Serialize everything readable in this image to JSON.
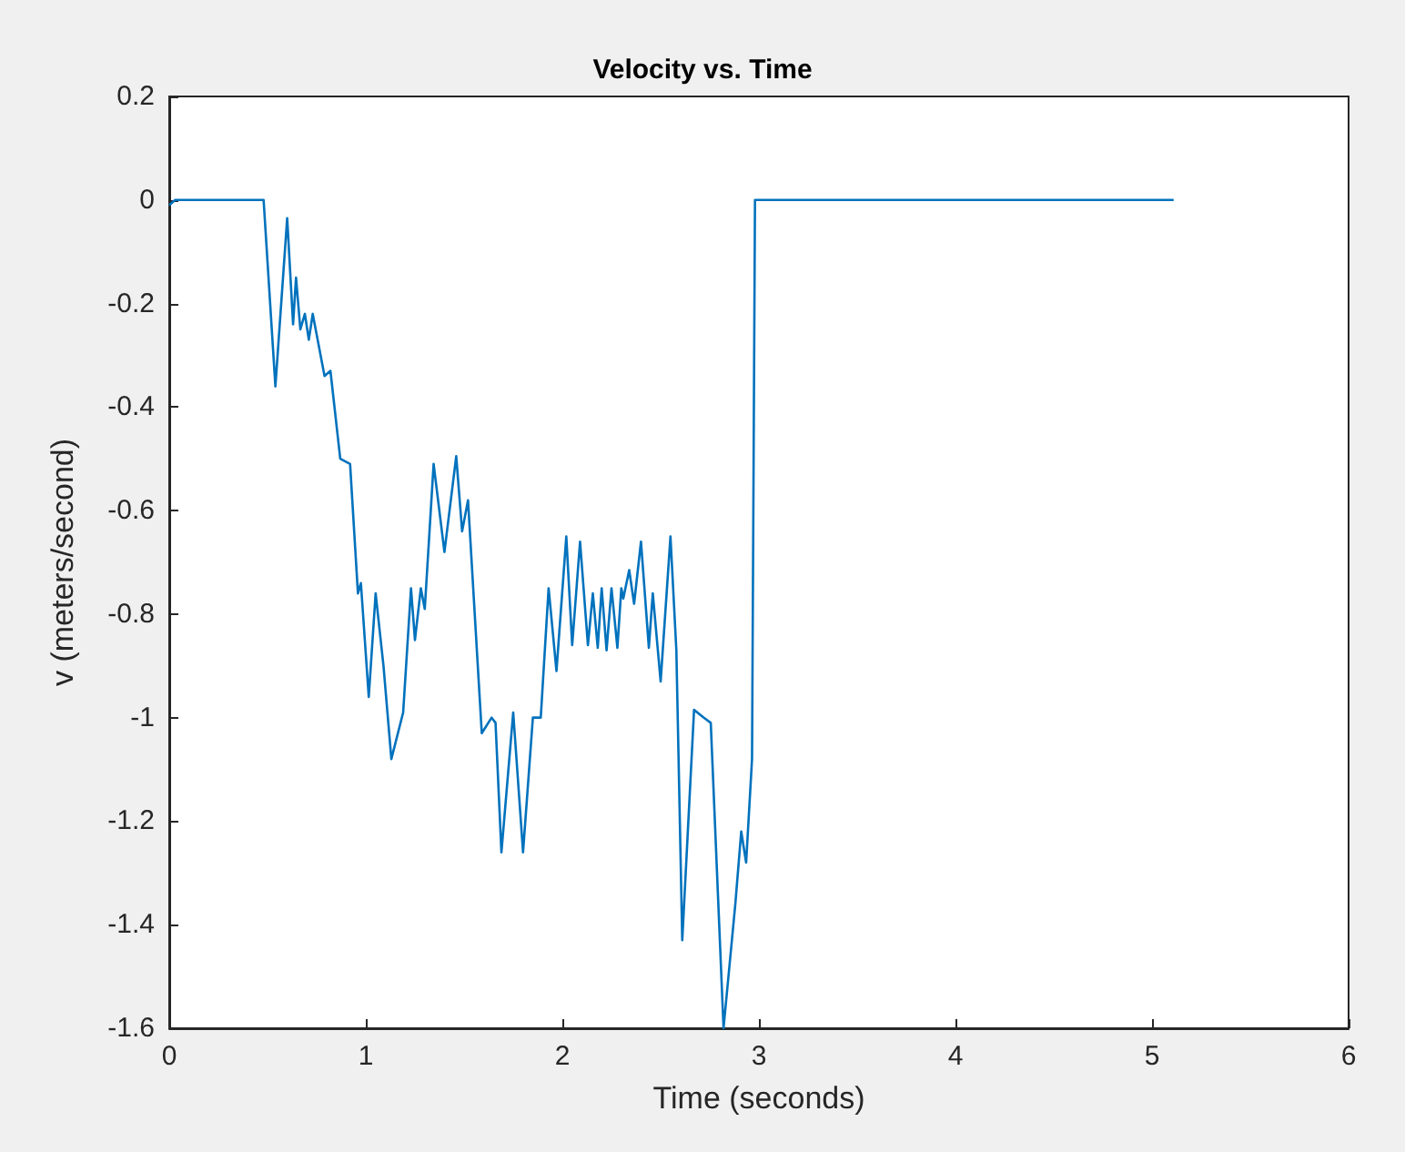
{
  "chart_data": {
    "type": "line",
    "title": "Velocity vs. Time",
    "xlabel": "Time (seconds)",
    "ylabel": "v (meters/second)",
    "xlim": [
      0,
      6
    ],
    "xticks": [
      0,
      1,
      2,
      3,
      4,
      5,
      6
    ],
    "ylim": [
      -1.6,
      0.2
    ],
    "yticks": [
      -1.6,
      -1.4,
      -1.2,
      -1,
      -0.8,
      -0.6,
      -0.4,
      -0.2,
      0,
      0.2
    ],
    "grid": false,
    "marker": "none",
    "line_style": "solid",
    "series": [
      {
        "color": "#0072bd",
        "x": [
          0,
          0.03,
          0.48,
          0.54,
          0.6,
          0.63,
          0.645,
          0.667,
          0.69,
          0.71,
          0.73,
          0.79,
          0.82,
          0.87,
          0.92,
          0.96,
          0.975,
          1.015,
          1.05,
          1.09,
          1.13,
          1.19,
          1.23,
          1.25,
          1.28,
          1.3,
          1.345,
          1.4,
          1.46,
          1.49,
          1.52,
          1.59,
          1.64,
          1.66,
          1.69,
          1.75,
          1.8,
          1.85,
          1.89,
          1.93,
          1.97,
          2.02,
          2.05,
          2.09,
          2.13,
          2.155,
          2.18,
          2.2,
          2.225,
          2.25,
          2.28,
          2.3,
          2.31,
          2.34,
          2.365,
          2.4,
          2.44,
          2.46,
          2.5,
          2.55,
          2.58,
          2.61,
          2.67,
          2.72,
          2.755,
          2.82,
          2.88,
          2.91,
          2.935,
          2.965,
          2.98,
          5.11
        ],
        "values": [
          -0.01,
          0,
          0,
          -0.36,
          -0.035,
          -0.24,
          -0.15,
          -0.25,
          -0.22,
          -0.27,
          -0.22,
          -0.34,
          -0.33,
          -0.5,
          -0.51,
          -0.76,
          -0.74,
          -0.96,
          -0.76,
          -0.9,
          -1.08,
          -0.99,
          -0.75,
          -0.85,
          -0.75,
          -0.79,
          -0.51,
          -0.68,
          -0.495,
          -0.64,
          -0.58,
          -1.03,
          -1,
          -1.01,
          -1.26,
          -0.99,
          -1.26,
          -1,
          -1,
          -0.75,
          -0.91,
          -0.65,
          -0.86,
          -0.66,
          -0.86,
          -0.76,
          -0.865,
          -0.75,
          -0.87,
          -0.75,
          -0.865,
          -0.75,
          -0.77,
          -0.715,
          -0.78,
          -0.66,
          -0.865,
          -0.76,
          -0.93,
          -0.65,
          -0.87,
          -1.43,
          -0.985,
          -1,
          -1.01,
          -1.6,
          -1.36,
          -1.22,
          -1.28,
          -1.08,
          0,
          0
        ]
      }
    ]
  }
}
